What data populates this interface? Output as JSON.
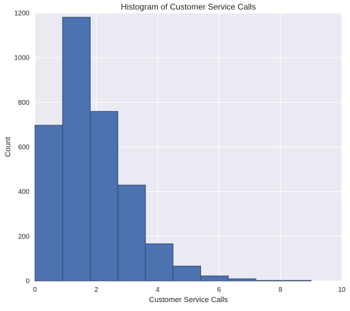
{
  "chart_data": {
    "type": "bar",
    "title": "Histogram of Customer Service Calls",
    "xlabel": "Customer Service Calls",
    "ylabel": "Count",
    "xlim": [
      0,
      10
    ],
    "ylim": [
      0,
      1200
    ],
    "bin_edges": [
      0,
      0.9,
      1.8,
      2.7,
      3.6,
      4.5,
      5.4,
      6.3,
      7.2,
      8.1,
      9.0
    ],
    "values": [
      697,
      1181,
      759,
      429,
      166,
      66,
      22,
      9,
      2,
      2
    ],
    "x_ticks": [
      0,
      2,
      4,
      6,
      8,
      10
    ],
    "y_ticks": [
      0,
      200,
      400,
      600,
      800,
      1000,
      1200
    ],
    "grid": true,
    "colors": {
      "background": "#EAEAF2",
      "bar_fill": "#4C72B0",
      "bar_edge": "#2F4A6E",
      "grid": "#FFFFFF"
    }
  }
}
